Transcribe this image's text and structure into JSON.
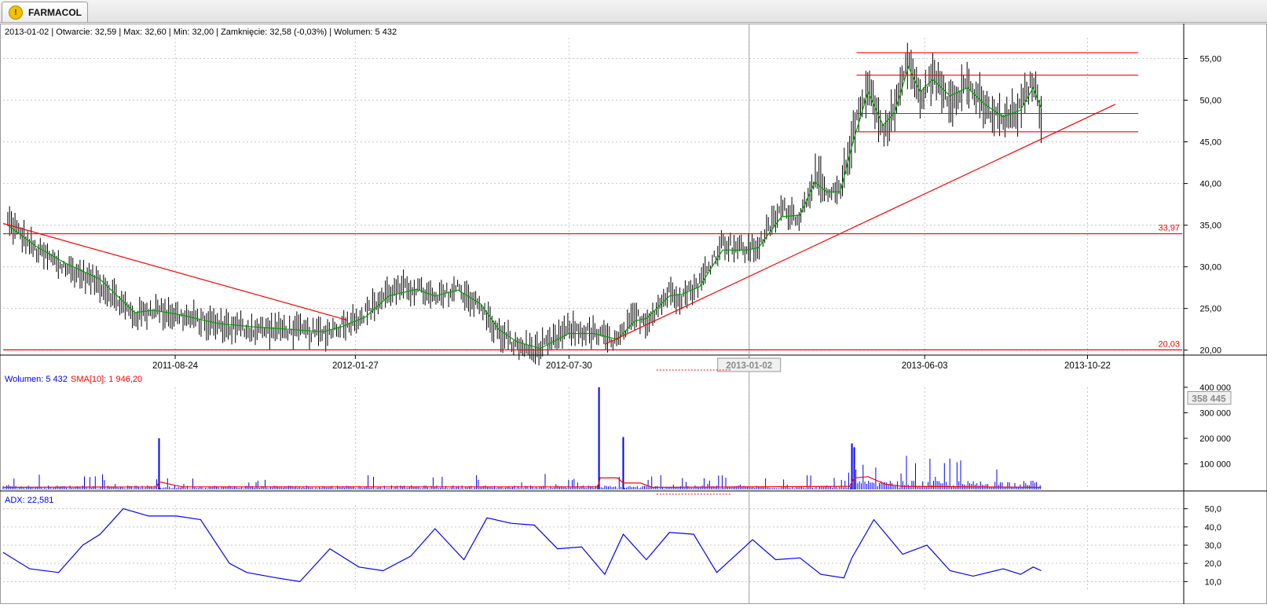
{
  "tab": {
    "label": "FARMACOL",
    "icon": "warning-icon"
  },
  "info_bar": {
    "date": "2013-01-02",
    "open": "Otwarcie: 32,59",
    "max": "Max: 32,60",
    "min": "Min: 32,00",
    "close": "Zamknięcie: 32,58 (-0,03%)",
    "volume": "Wolumen: 5 432"
  },
  "colors": {
    "price": "#000000",
    "sma": "#00a000",
    "lines": "#ff0000",
    "volume": "#0000ff",
    "volume_sma": "#ff0000",
    "adx": "#0000ff",
    "grid": "#c8c8c8"
  },
  "chart_data": [
    {
      "type": "line",
      "panel": "price",
      "x_range": [
        "2011-03-28",
        "2014-01-12"
      ],
      "ylim": [
        19.5,
        57.5
      ],
      "y_ticks": [
        "20,00",
        "25,00",
        "30,00",
        "35,00",
        "40,00",
        "45,00",
        "50,00",
        "55,00"
      ],
      "x_ticks": [
        "2011-08-24",
        "2012-01-27",
        "2012-07-30",
        "2013-01-02",
        "2013-06-03",
        "2013-10-22"
      ],
      "crosshair_date": "2013-01-02",
      "grid": true,
      "series": [
        {
          "name": "Kurs",
          "x": [
            "2011-04-01",
            "2011-04-25",
            "2011-05-20",
            "2011-06-20",
            "2011-07-05",
            "2011-07-20",
            "2011-08-05",
            "2011-08-30",
            "2011-09-30",
            "2011-10-30",
            "2011-11-30",
            "2011-12-30",
            "2012-01-15",
            "2012-02-05",
            "2012-02-25",
            "2012-03-20",
            "2012-04-05",
            "2012-04-25",
            "2012-05-15",
            "2012-05-30",
            "2012-06-15",
            "2012-07-05",
            "2012-07-30",
            "2012-08-20",
            "2012-09-10",
            "2012-09-25",
            "2012-10-05",
            "2012-10-25",
            "2012-11-05",
            "2012-11-20",
            "2012-12-10",
            "2012-12-30",
            "2013-01-10",
            "2013-01-30",
            "2013-02-15",
            "2013-02-28",
            "2013-03-10",
            "2013-03-22",
            "2013-04-02",
            "2013-04-15",
            "2013-04-28",
            "2013-05-08",
            "2013-05-20",
            "2013-05-30",
            "2013-06-10",
            "2013-06-25",
            "2013-07-10",
            "2013-07-25",
            "2013-08-10",
            "2013-08-25",
            "2013-09-05",
            "2013-09-12"
          ],
          "values": [
            35.5,
            32,
            30,
            28,
            26,
            24,
            25,
            24,
            23,
            22.5,
            22.5,
            22,
            23,
            24.5,
            27,
            27.5,
            26,
            27.5,
            25,
            22,
            20.5,
            20,
            22.5,
            22,
            21,
            24,
            23.5,
            27,
            26.5,
            28,
            33,
            32,
            32.5,
            37,
            36,
            41,
            38.5,
            39,
            46,
            52,
            46,
            49,
            55,
            50,
            53,
            50,
            52,
            49,
            47.5,
            49,
            52.5,
            48
          ]
        },
        {
          "name": "SMA",
          "x": [
            "2011-04-01",
            "2011-04-25",
            "2011-05-20",
            "2011-06-20",
            "2011-07-05",
            "2011-07-20",
            "2011-08-05",
            "2011-08-30",
            "2011-09-30",
            "2011-10-30",
            "2011-11-30",
            "2011-12-30",
            "2012-01-15",
            "2012-02-05",
            "2012-02-25",
            "2012-03-20",
            "2012-04-05",
            "2012-04-25",
            "2012-05-15",
            "2012-05-30",
            "2012-06-15",
            "2012-07-05",
            "2012-07-30",
            "2012-08-20",
            "2012-09-10",
            "2012-09-25",
            "2012-10-05",
            "2012-10-25",
            "2012-11-05",
            "2012-11-20",
            "2012-12-10",
            "2012-12-30",
            "2013-01-10",
            "2013-01-30",
            "2013-02-15",
            "2013-02-28",
            "2013-03-10",
            "2013-03-22",
            "2013-04-02",
            "2013-04-15",
            "2013-04-28",
            "2013-05-08",
            "2013-05-20",
            "2013-05-30",
            "2013-06-10",
            "2013-06-25",
            "2013-07-10",
            "2013-07-25",
            "2013-08-10",
            "2013-08-25",
            "2013-09-05",
            "2013-09-12"
          ],
          "values": [
            35,
            32.5,
            30.5,
            28.5,
            26.5,
            24.5,
            24.8,
            24.2,
            23.2,
            22.8,
            22.5,
            22.2,
            22.8,
            24,
            26.5,
            27.3,
            26.5,
            27.2,
            25.5,
            22.5,
            21,
            20.2,
            22,
            22,
            21.3,
            23.5,
            23.8,
            26.5,
            26.7,
            27.6,
            32,
            32,
            32.3,
            36,
            36.2,
            40.2,
            39,
            39,
            45,
            51,
            47,
            48.5,
            54,
            51,
            52.5,
            50.5,
            51.5,
            49.5,
            48,
            48.8,
            51.5,
            49
          ]
        }
      ],
      "hlines": [
        {
          "value": 33.97,
          "label": "33,97"
        },
        {
          "value": 20.03,
          "label": "20,03"
        }
      ],
      "resistance_lines": [
        {
          "value": 55.7,
          "x": [
            "2013-04-05",
            "2013-12-05"
          ]
        },
        {
          "value": 53.0,
          "x": [
            "2013-04-05",
            "2013-12-05"
          ]
        },
        {
          "value": 48.4,
          "x": [
            "2013-04-05",
            "2013-12-05"
          ]
        },
        {
          "value": 46.2,
          "x": [
            "2013-04-05",
            "2013-12-05"
          ]
        }
      ],
      "trendlines": [
        {
          "x": [
            "2011-03-28",
            "2012-01-20"
          ],
          "y": [
            35.2,
            23.6
          ]
        },
        {
          "x": [
            "2012-08-30",
            "2013-11-15"
          ],
          "y": [
            20.7,
            49.5
          ]
        }
      ]
    },
    {
      "type": "bar",
      "panel": "volume",
      "label": "Wolumen: 5 432",
      "sma_label": "SMA[10]: 1 946,20",
      "ylim": [
        0,
        400000
      ],
      "y_ticks": [
        "100 000",
        "200 000",
        "300 000",
        "400 000"
      ],
      "cursor_value": "358 445",
      "spikes": [
        {
          "x": "2011-08-10",
          "value": 200000
        },
        {
          "x": "2012-08-25",
          "value": 400000
        },
        {
          "x": "2012-09-15",
          "value": 205000
        },
        {
          "x": "2013-04-01",
          "value": 180000
        },
        {
          "x": "2013-04-03",
          "value": 165000
        }
      ],
      "series": [
        {
          "name": "SMA[10]",
          "x": [
            "2011-03-28",
            "2011-08-08",
            "2011-08-10",
            "2011-08-30",
            "2012-08-24",
            "2012-08-26",
            "2012-09-10",
            "2012-09-15",
            "2012-09-30",
            "2012-10-10",
            "2013-03-30",
            "2013-04-03",
            "2013-04-15",
            "2013-04-30",
            "2013-05-15",
            "2013-09-12"
          ],
          "values": [
            8000,
            10000,
            30000,
            10000,
            10000,
            45000,
            45000,
            25000,
            25000,
            8000,
            12000,
            45000,
            50000,
            20000,
            12000,
            8000
          ]
        }
      ]
    },
    {
      "type": "line",
      "panel": "adx",
      "label": "ADX: 22,581",
      "ylim": [
        8,
        52
      ],
      "y_ticks": [
        "10,0",
        "20,0",
        "30,0",
        "40,0",
        "50,0"
      ],
      "series": [
        {
          "name": "ADX",
          "x": [
            "2011-03-28",
            "2011-04-20",
            "2011-05-15",
            "2011-06-05",
            "2011-06-20",
            "2011-07-10",
            "2011-08-01",
            "2011-08-25",
            "2011-09-15",
            "2011-10-10",
            "2011-10-25",
            "2011-11-20",
            "2011-12-10",
            "2012-01-05",
            "2012-01-30",
            "2012-02-20",
            "2012-03-15",
            "2012-04-05",
            "2012-04-30",
            "2012-05-20",
            "2012-06-10",
            "2012-06-30",
            "2012-07-20",
            "2012-08-10",
            "2012-08-30",
            "2012-09-15",
            "2012-10-05",
            "2012-10-25",
            "2012-11-15",
            "2012-12-05",
            "2013-01-05",
            "2013-01-25",
            "2013-02-15",
            "2013-03-05",
            "2013-03-25",
            "2013-04-01",
            "2013-04-20",
            "2013-05-15",
            "2013-06-05",
            "2013-06-25",
            "2013-07-15",
            "2013-08-10",
            "2013-08-25",
            "2013-09-05",
            "2013-09-12"
          ],
          "values": [
            26,
            17,
            15,
            30,
            36,
            50,
            46,
            46,
            44,
            20,
            15,
            12,
            10,
            28,
            18,
            16,
            24,
            39,
            22,
            45,
            42,
            41,
            28,
            29,
            14,
            36,
            22,
            37,
            36,
            15,
            33,
            22,
            23,
            14,
            12,
            23,
            44,
            25,
            30,
            16,
            13,
            17,
            14,
            18,
            16
          ]
        }
      ]
    }
  ]
}
